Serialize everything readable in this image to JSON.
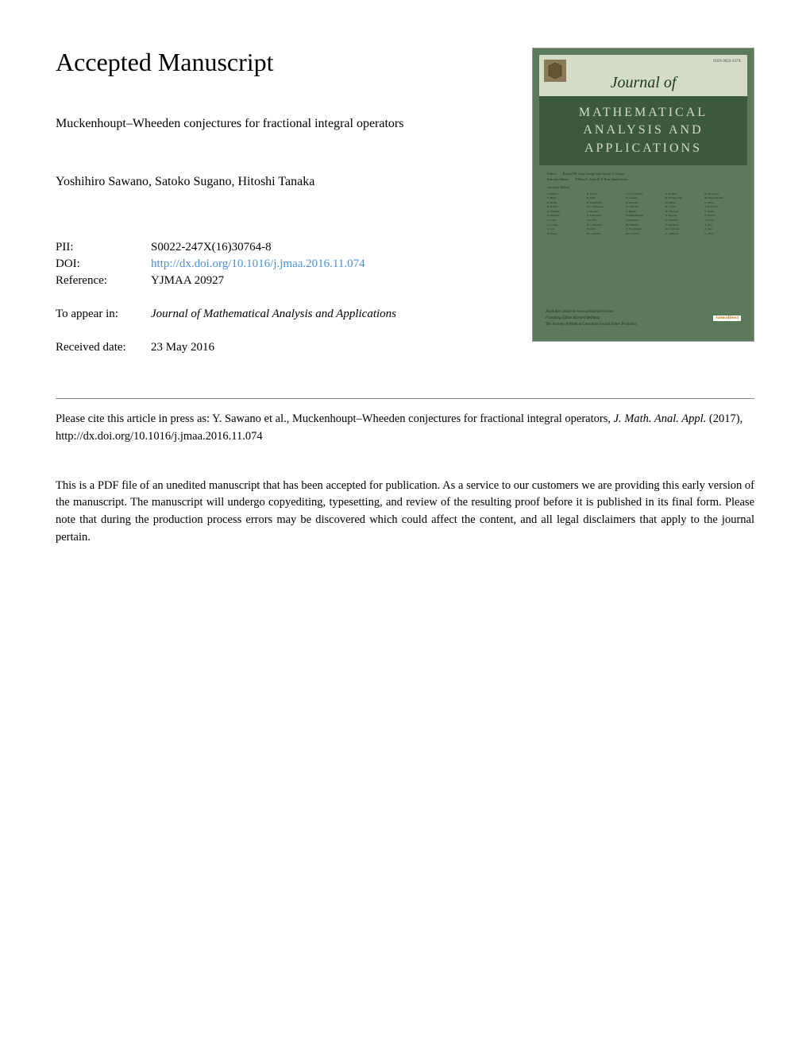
{
  "heading": "Accepted Manuscript",
  "paper_title": "Muckenhoupt–Wheeden conjectures for fractional integral operators",
  "authors": "Yoshihiro Sawano, Satoko Sugano, Hitoshi Tanaka",
  "meta": {
    "pii_label": "PII:",
    "pii_value": "S0022-247X(16)30764-8",
    "doi_label": "DOI:",
    "doi_value": "http://dx.doi.org/10.1016/j.jmaa.2016.11.074",
    "ref_label": "Reference:",
    "ref_value": "YJMAA 20927",
    "appear_label": "To appear in:",
    "appear_value": "Journal of Mathematical Analysis and Applications",
    "received_label": "Received date:",
    "received_value": "23 May 2016"
  },
  "citation": {
    "prefix": "Please cite this article in press as: Y. Sawano et al., Muckenhoupt–Wheeden conjectures for fractional integral operators, ",
    "journal": "J. Math. Anal. Appl.",
    "suffix": " (2017), http://dx.doi.org/10.1016/j.jmaa.2016.11.074"
  },
  "disclaimer": "This is a PDF file of an unedited manuscript that has been accepted for publication. As a service to our customers we are providing this early version of the manuscript. The manuscript will undergo copyediting, typesetting, and review of the resulting proof before it is published in its final form. Please note that during the production process errors may be discovered which could affect the content, and all legal disclaimers that apply to the journal pertain.",
  "cover": {
    "issn": "ISSN 0022-247X",
    "journal_of": "Journal of",
    "title_line1": "MATHEMATICAL",
    "title_line2": "ANALYSIS AND",
    "title_line3": "APPLICATIONS",
    "editors_chief_label": "Editors",
    "editors_chief": "Richard M. Aron    Goong Chen    Steven G. Krantz",
    "emeritus_label": "Emeritus Editors",
    "emeritus": "William F. Ames    R. P. Boas    James Serrin",
    "assoc_label": "Associate Editors",
    "editors_list": [
      "J. Bastero",
      "K. Driver",
      "J. A. Goldstein",
      "P. Koskela",
      "D. Ryabogin",
      "S. Bhatt",
      "H. Dym",
      "D. Gomez",
      "H. Frankowska",
      "M. Stekolshchik",
      "E. Bonet",
      "N. Eisenbaum",
      "S. Grivaux",
      "M. Krbec",
      "C. Silva",
      "K. Binder",
      "P. G. Fernandez",
      "D. Hensley",
      "B. Lotvin",
      "T. Ransford",
      "G. Bluman",
      "J. Fletcher",
      "V. Havin",
      "D. O'Regan",
      "S. Reich",
      "R. Brunetti",
      "A. Fernandez",
      "H. Hedenmalm",
      "D. Repovs",
      "P. Werner",
      "G. Chen",
      "P. Godin",
      "J. Horowitz",
      "E. Saksman",
      "O. Zane",
      "J. Cowen",
      "W. Golitschek",
      "M. Jimenez",
      "P. Sternberg",
      "Y. Yao",
      "S. Cui",
      "P. Galdi",
      "E. Kreighaum",
      "M. Schlosser",
      "Y. Zou",
      "H. Dong",
      "M. Gonzalez",
      "M. Johnson",
      "K. Okikiolu",
      "L. Zhao"
    ],
    "footer1": "Available online at www.sciencedirect.com",
    "footer2": "Founding Editor Richard Bellman",
    "footer3": "The Society of Biblical Literature hosted hither Problems",
    "sd": "ScienceDirect"
  },
  "colors": {
    "link": "#4a90d9",
    "cover_bg": "#5a7a5a",
    "cover_header_bg": "#d4dcc8",
    "cover_title_bg": "#3a5a3a"
  }
}
